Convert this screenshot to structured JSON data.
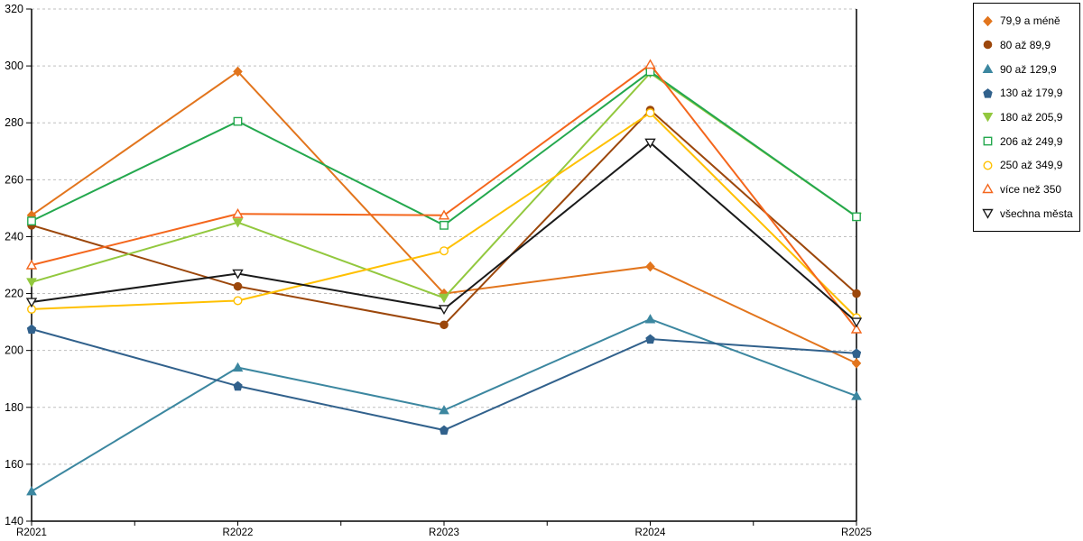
{
  "chart_data": {
    "type": "line",
    "categories": [
      "R2021",
      "R2022",
      "R2023",
      "R2024",
      "R2025"
    ],
    "ylim": [
      140,
      320
    ],
    "ytick_step": 20,
    "grid": "horizontal-dashed",
    "legend_position": "top-right",
    "series": [
      {
        "name": "79,9 a méně",
        "color": "#E2751D",
        "marker": "diamond",
        "fill": "solid",
        "values": [
          247.5,
          298,
          220,
          229.5,
          195.5
        ]
      },
      {
        "name": "80 až 89,9",
        "color": "#9C470B",
        "marker": "circle",
        "fill": "solid",
        "values": [
          244,
          222.5,
          209,
          284.5,
          220
        ]
      },
      {
        "name": "90 až 129,9",
        "color": "#3C87A0",
        "marker": "triangle-up",
        "fill": "solid",
        "values": [
          150.5,
          194,
          179,
          211,
          184
        ]
      },
      {
        "name": "130 až 179,9",
        "color": "#31618C",
        "marker": "pentagon",
        "fill": "solid",
        "values": [
          207.5,
          187.5,
          172,
          204,
          199
        ]
      },
      {
        "name": "180 až 205,9",
        "color": "#92C83E",
        "marker": "triangle-down",
        "fill": "solid",
        "values": [
          224,
          245,
          218.5,
          297.5,
          247
        ]
      },
      {
        "name": "206 až 249,9",
        "color": "#24A84E",
        "marker": "square",
        "fill": "open",
        "values": [
          245.5,
          280.5,
          244,
          298,
          247
        ]
      },
      {
        "name": "250 až 349,9",
        "color": "#FFC000",
        "marker": "circle",
        "fill": "open",
        "values": [
          214.5,
          217.5,
          235,
          283.5,
          211.5
        ]
      },
      {
        "name": "více než 350",
        "color": "#F4661C",
        "marker": "triangle-up",
        "fill": "open",
        "values": [
          230,
          248,
          247.5,
          300.5,
          207.5
        ]
      },
      {
        "name": "všechna města",
        "color": "#1A1A1A",
        "marker": "triangle-down",
        "fill": "open",
        "values": [
          217,
          227,
          214.5,
          273,
          210
        ]
      }
    ],
    "axis_color": "#000000",
    "gridline_color": "#BFBFBF"
  }
}
